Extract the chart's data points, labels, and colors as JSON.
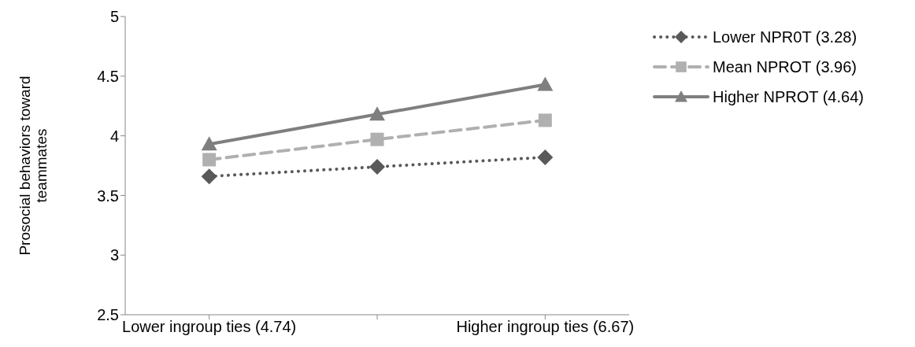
{
  "chart_data": {
    "type": "line",
    "ylabel": "Prosocial behaviors toward teammates",
    "categories": [
      "Lower ingroup ties (4.74)",
      null,
      "Higher ingroup ties (6.67)"
    ],
    "series": [
      {
        "name": "Lower NPR0T (3.28)",
        "color": "#595959",
        "values": [
          3.66,
          3.74,
          3.82
        ],
        "marker": "diamond",
        "line_style": "dotted"
      },
      {
        "name": "Mean NPROT (3.96)",
        "color": "#b0b0b0",
        "values": [
          3.8,
          3.97,
          4.13
        ],
        "marker": "square",
        "line_style": "dashed"
      },
      {
        "name": "Higher NPROT (4.64)",
        "color": "#7f7f7f",
        "values": [
          3.93,
          4.18,
          4.43
        ],
        "marker": "triangle",
        "line_style": "solid"
      }
    ],
    "ylim": [
      2.5,
      5
    ],
    "yticks": [
      2.5,
      3,
      3.5,
      4,
      4.5,
      5
    ],
    "grid": false,
    "legend": "right"
  }
}
